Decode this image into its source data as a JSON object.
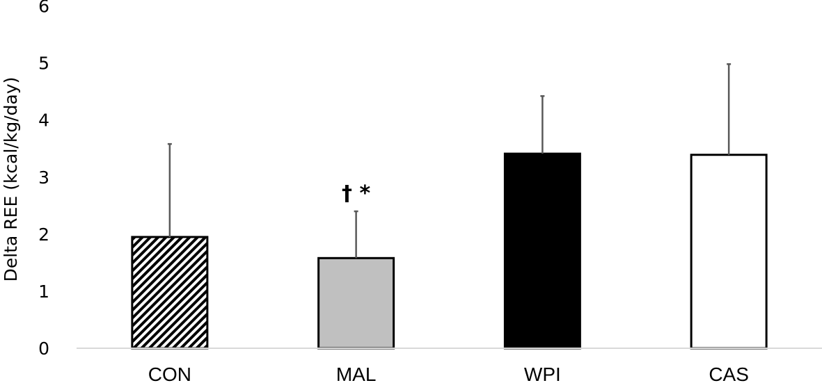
{
  "chart_data": {
    "type": "bar",
    "title": "",
    "xlabel": "",
    "ylabel": "Delta REE (kcal/kg/day)",
    "ylim": [
      0,
      6
    ],
    "yticks": [
      "0",
      "1",
      "2",
      "3",
      "4",
      "5",
      "6"
    ],
    "grid": false,
    "categories": [
      "CON",
      "MAL",
      "WPI",
      "CAS"
    ],
    "values": [
      1.95,
      1.58,
      3.41,
      3.39
    ],
    "error_upper": [
      3.58,
      2.4,
      4.42,
      4.98
    ],
    "fills": [
      "hatched",
      "#c0c0c0",
      "#000000",
      "#ffffff"
    ],
    "annotations": [
      {
        "category": "MAL",
        "text": "† *"
      }
    ]
  }
}
